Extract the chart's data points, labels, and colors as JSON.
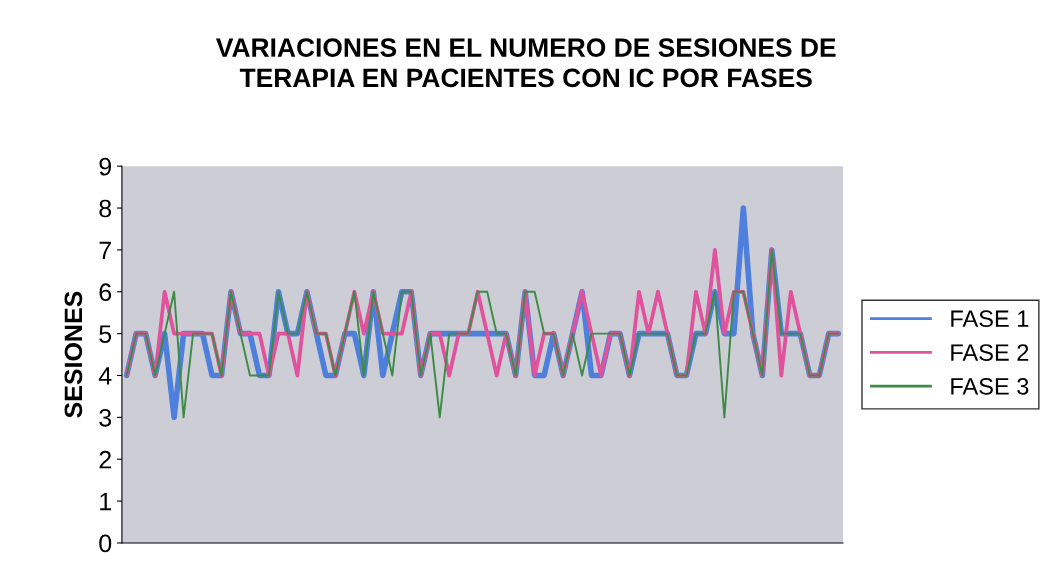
{
  "chart_data": {
    "type": "line",
    "title": "VARIACIONES EN EL NUMERO DE SESIONES DE\nTERAPIA EN PACIENTES CON IC POR FASES",
    "ylabel": "SESIONES",
    "categories": [
      null,
      null,
      null,
      null,
      null,
      null,
      null,
      null,
      null,
      null,
      null,
      null,
      null,
      null,
      null,
      null,
      null,
      null,
      null,
      null,
      null,
      null,
      null,
      null,
      null,
      null,
      null,
      null,
      null,
      null,
      null,
      null,
      null,
      null,
      null,
      null,
      null,
      null,
      null,
      null,
      null,
      null,
      null,
      null,
      null,
      null,
      null,
      null,
      null,
      null,
      null,
      null,
      null,
      null,
      null,
      null,
      null,
      null,
      null,
      null,
      null,
      null,
      null,
      null,
      null,
      null,
      null,
      null,
      null,
      null,
      null,
      null,
      null,
      null,
      null,
      null
    ],
    "series": [
      {
        "name": "FASE 1",
        "color": "#4f7fdc",
        "values": [
          4,
          5,
          5,
          4,
          5,
          3,
          5,
          5,
          5,
          4,
          4,
          6,
          5,
          5,
          4,
          4,
          6,
          5,
          5,
          6,
          5,
          4,
          4,
          5,
          5,
          4,
          6,
          4,
          5,
          6,
          6,
          4,
          5,
          5,
          5,
          5,
          5,
          5,
          5,
          5,
          5,
          4,
          6,
          4,
          4,
          5,
          4,
          5,
          6,
          4,
          4,
          5,
          5,
          4,
          5,
          5,
          5,
          5,
          4,
          4,
          5,
          5,
          6,
          5,
          5,
          8,
          5,
          4,
          7,
          5,
          5,
          5,
          4,
          4,
          5,
          5
        ]
      },
      {
        "name": "FASE 2",
        "color": "#e0529c",
        "values": [
          4,
          5,
          5,
          4,
          6,
          5,
          5,
          5,
          5,
          5,
          4,
          6,
          5,
          5,
          5,
          4,
          5,
          5,
          4,
          6,
          5,
          5,
          4,
          5,
          6,
          5,
          6,
          5,
          5,
          5,
          6,
          4,
          5,
          5,
          4,
          5,
          5,
          6,
          5,
          4,
          5,
          4,
          6,
          4,
          5,
          5,
          4,
          5,
          6,
          5,
          4,
          5,
          5,
          4,
          6,
          5,
          6,
          5,
          4,
          4,
          6,
          5,
          7,
          5,
          6,
          6,
          5,
          4,
          7,
          4,
          6,
          5,
          4,
          4,
          5,
          5
        ]
      },
      {
        "name": "FASE 3",
        "color": "#3c8c46",
        "values": [
          4,
          5,
          5,
          4,
          5,
          6,
          3,
          5,
          5,
          5,
          4,
          6,
          5,
          4,
          4,
          4,
          6,
          5,
          5,
          6,
          5,
          5,
          4,
          5,
          6,
          4,
          6,
          5,
          4,
          6,
          6,
          4,
          5,
          3,
          5,
          5,
          5,
          6,
          6,
          5,
          5,
          4,
          6,
          6,
          5,
          5,
          4,
          5,
          4,
          5,
          5,
          5,
          5,
          4,
          5,
          5,
          5,
          5,
          4,
          4,
          5,
          5,
          6,
          3,
          6,
          6,
          5,
          4,
          7,
          5,
          5,
          5,
          4,
          4,
          5,
          5
        ]
      }
    ],
    "ylim": [
      0,
      9
    ],
    "yticks": [
      0,
      1,
      2,
      3,
      4,
      5,
      6,
      7,
      8,
      9
    ],
    "grid": false,
    "legend": "right",
    "marker": "none",
    "line_style": "solid"
  }
}
